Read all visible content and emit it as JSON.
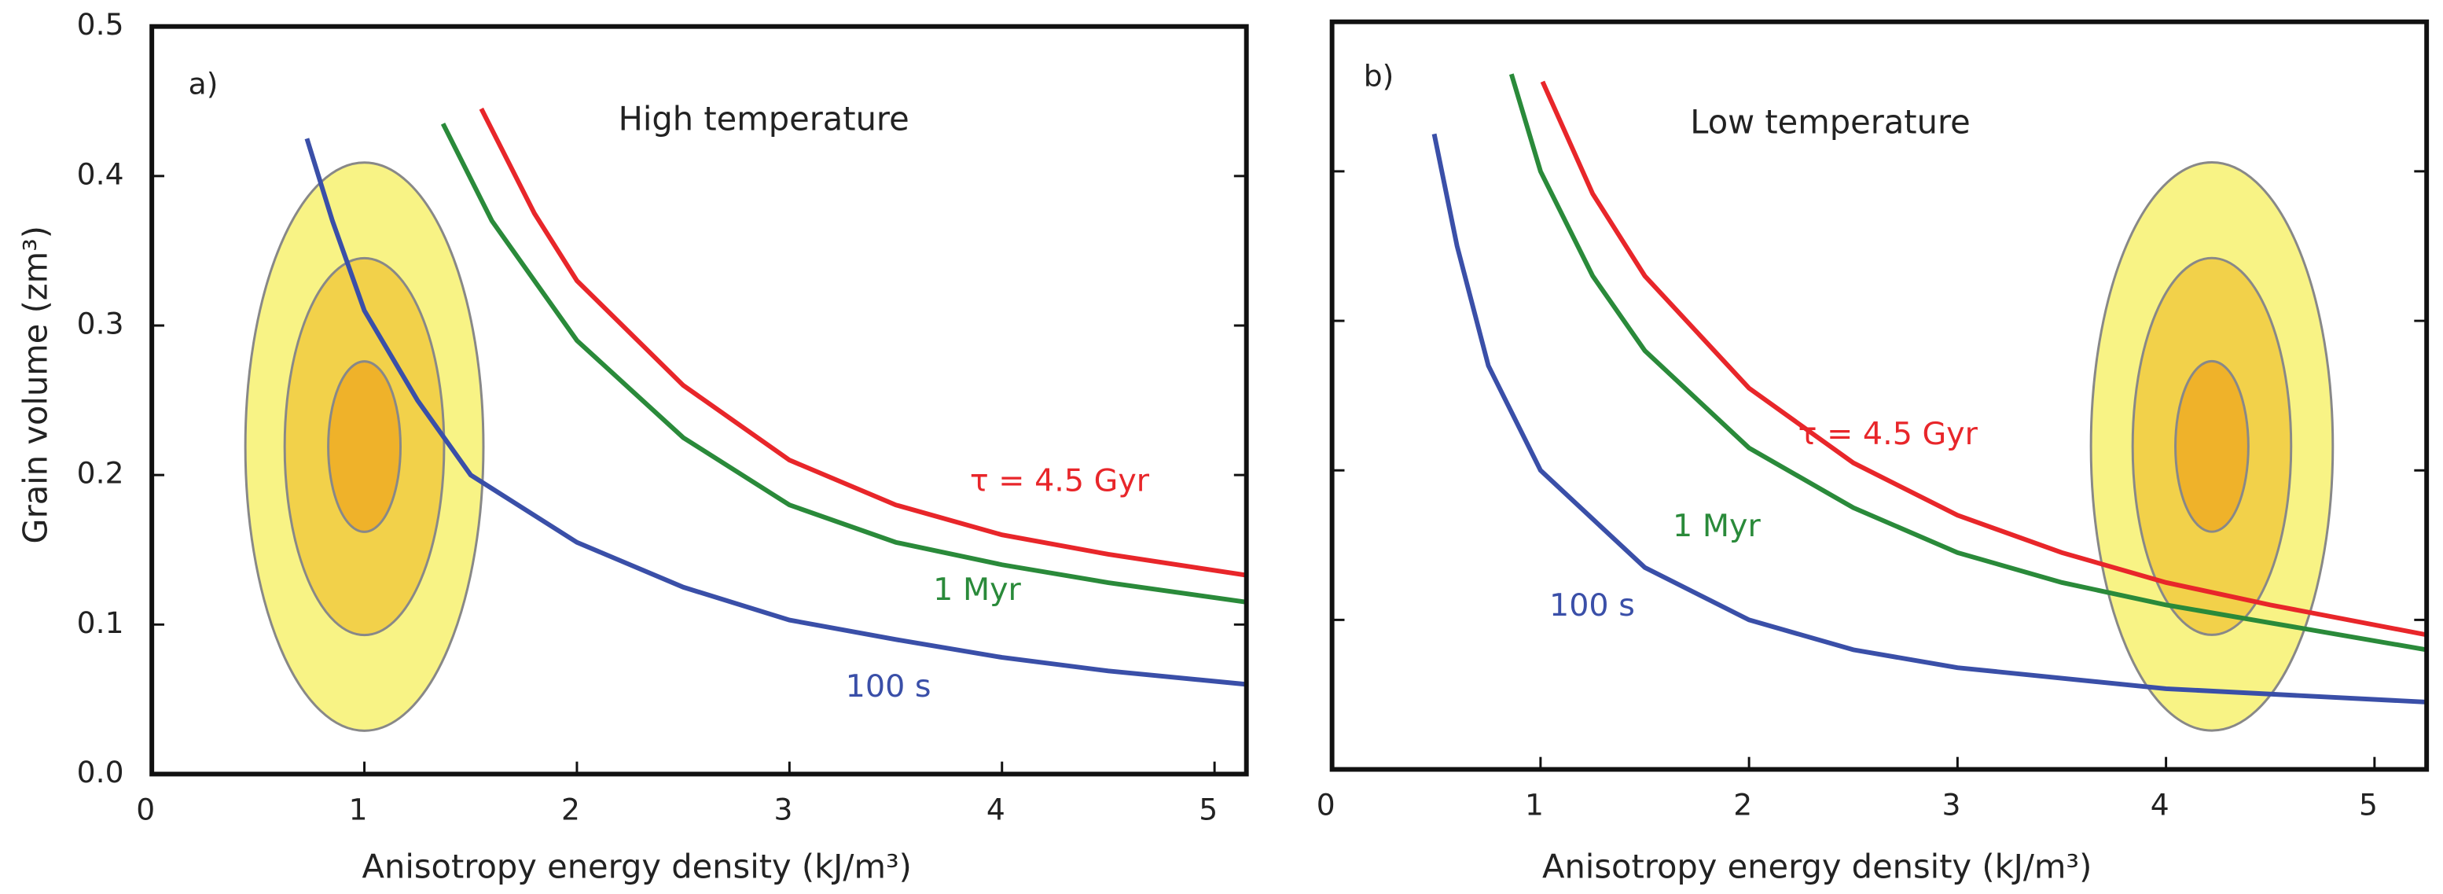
{
  "chart_data": [
    {
      "type": "line",
      "panel": "a)",
      "title": "High temperature",
      "xlabel": "Anisotropy energy density (kJ/m³)",
      "ylabel": "Grain volume (zm³)",
      "xlim": [
        0,
        5.15
      ],
      "ylim": [
        0,
        0.5
      ],
      "xticks": [
        0,
        1,
        2,
        3,
        4,
        5
      ],
      "yticks": [
        {
          "value": 0,
          "label": "0.0"
        },
        0.1,
        0.2,
        0.3,
        0.4,
        0.5
      ],
      "ytick_labels": true,
      "series": [
        {
          "name": "100 s",
          "color": "#3a4fa8",
          "x": [
            0.73,
            0.85,
            1,
            1.25,
            1.5,
            2,
            2.5,
            3,
            3.5,
            4,
            4.5,
            5.15
          ],
          "values": [
            0.425,
            0.37,
            0.31,
            0.25,
            0.2,
            0.155,
            0.125,
            0.103,
            0.09,
            0.078,
            0.069,
            0.06
          ]
        },
        {
          "name": "1 Myr",
          "color": "#2a8a3a",
          "x": [
            1.37,
            1.6,
            2,
            2.5,
            3,
            3.5,
            4,
            4.5,
            5.15
          ],
          "values": [
            0.435,
            0.37,
            0.29,
            0.225,
            0.18,
            0.155,
            0.14,
            0.128,
            0.115
          ]
        },
        {
          "name": "τ = 4.5 Gyr",
          "color": "#e8262a",
          "x": [
            1.55,
            1.8,
            2,
            2.5,
            3,
            3.5,
            4,
            4.5,
            5.15
          ],
          "values": [
            0.445,
            0.375,
            0.33,
            0.26,
            0.21,
            0.18,
            0.16,
            0.147,
            0.133
          ]
        }
      ],
      "ellipses": [
        {
          "cx": 1.0,
          "cy": 0.219,
          "rx": 0.56,
          "ry": 0.19,
          "color": "#f8f385"
        },
        {
          "cx": 1.0,
          "cy": 0.219,
          "rx": 0.375,
          "ry": 0.126,
          "color": "#f2d14a"
        },
        {
          "cx": 1.0,
          "cy": 0.219,
          "rx": 0.17,
          "ry": 0.057,
          "color": "#efb22a"
        }
      ]
    },
    {
      "type": "line",
      "panel": "b)",
      "title": "Low temperature",
      "xlabel": "Anisotropy energy density (kJ/m³)",
      "xlim": [
        0,
        5.25
      ],
      "ylim": [
        0,
        0.5
      ],
      "xticks": [
        0,
        1,
        2,
        3,
        4,
        5
      ],
      "yticks": [
        0,
        0.1,
        0.2,
        0.3,
        0.4,
        0.5
      ],
      "ytick_labels": false,
      "series": [
        {
          "name": "100 s",
          "color": "#3a4fa8",
          "x": [
            0.49,
            0.6,
            0.75,
            1,
            1.5,
            2,
            2.5,
            3,
            4,
            5.25
          ],
          "values": [
            0.425,
            0.35,
            0.27,
            0.2,
            0.135,
            0.1,
            0.08,
            0.068,
            0.054,
            0.045
          ]
        },
        {
          "name": "1 Myr",
          "color": "#2a8a3a",
          "x": [
            0.86,
            1,
            1.25,
            1.5,
            2,
            2.5,
            3,
            3.5,
            4,
            4.5,
            5.25
          ],
          "values": [
            0.465,
            0.4,
            0.33,
            0.28,
            0.215,
            0.175,
            0.145,
            0.125,
            0.11,
            0.098,
            0.08
          ]
        },
        {
          "name": "τ = 4.5 Gyr",
          "color": "#e8262a",
          "x": [
            1.01,
            1.25,
            1.5,
            2,
            2.5,
            3,
            3.5,
            4,
            4.5,
            5.25
          ],
          "values": [
            0.46,
            0.385,
            0.33,
            0.255,
            0.205,
            0.17,
            0.145,
            0.125,
            0.11,
            0.09
          ]
        }
      ],
      "ellipses": [
        {
          "cx": 4.22,
          "cy": 0.216,
          "rx": 0.58,
          "ry": 0.19,
          "color": "#f8f385"
        },
        {
          "cx": 4.22,
          "cy": 0.216,
          "rx": 0.38,
          "ry": 0.126,
          "color": "#f2d14a"
        },
        {
          "cx": 4.22,
          "cy": 0.216,
          "rx": 0.175,
          "ry": 0.057,
          "color": "#efb22a"
        }
      ]
    }
  ]
}
